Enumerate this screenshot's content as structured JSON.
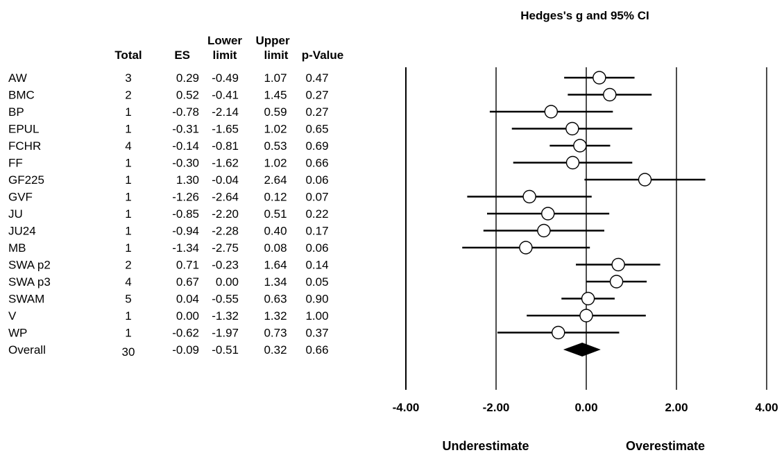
{
  "chart_data": {
    "type": "forest",
    "title": "Hedges's g and 95% CI",
    "columns": {
      "total": "Total",
      "es": "ES",
      "lower_top": "Lower",
      "lower_bottom": "limit",
      "upper_top": "Upper",
      "upper_bottom": "limit",
      "p": "p-Value"
    },
    "rows": [
      {
        "label": "AW",
        "total": "3",
        "es": "0.29",
        "lower": "-0.49",
        "upper": "1.07",
        "p": "0.47"
      },
      {
        "label": "BMC",
        "total": "2",
        "es": "0.52",
        "lower": "-0.41",
        "upper": "1.45",
        "p": "0.27"
      },
      {
        "label": "BP",
        "total": "1",
        "es": "-0.78",
        "lower": "-2.14",
        "upper": "0.59",
        "p": "0.27"
      },
      {
        "label": "EPUL",
        "total": "1",
        "es": "-0.31",
        "lower": "-1.65",
        "upper": "1.02",
        "p": "0.65"
      },
      {
        "label": "FCHR",
        "total": "4",
        "es": "-0.14",
        "lower": "-0.81",
        "upper": "0.53",
        "p": "0.69"
      },
      {
        "label": "FF",
        "total": "1",
        "es": "-0.30",
        "lower": "-1.62",
        "upper": "1.02",
        "p": "0.66"
      },
      {
        "label": "GF225",
        "total": "1",
        "es": "1.30",
        "lower": "-0.04",
        "upper": "2.64",
        "p": "0.06"
      },
      {
        "label": "GVF",
        "total": "1",
        "es": "-1.26",
        "lower": "-2.64",
        "upper": "0.12",
        "p": "0.07"
      },
      {
        "label": "JU",
        "total": "1",
        "es": "-0.85",
        "lower": "-2.20",
        "upper": "0.51",
        "p": "0.22"
      },
      {
        "label": "JU24",
        "total": "1",
        "es": "-0.94",
        "lower": "-2.28",
        "upper": "0.40",
        "p": "0.17"
      },
      {
        "label": "MB",
        "total": "1",
        "es": "-1.34",
        "lower": "-2.75",
        "upper": "0.08",
        "p": "0.06"
      },
      {
        "label": "SWA p2",
        "total": "2",
        "es": "0.71",
        "lower": "-0.23",
        "upper": "1.64",
        "p": "0.14"
      },
      {
        "label": "SWA p3",
        "total": "4",
        "es": "0.67",
        "lower": "0.00",
        "upper": "1.34",
        "p": "0.05"
      },
      {
        "label": "SWAM",
        "total": "5",
        "es": "0.04",
        "lower": "-0.55",
        "upper": "0.63",
        "p": "0.90"
      },
      {
        "label": "V",
        "total": "1",
        "es": "0.00",
        "lower": "-1.32",
        "upper": "1.32",
        "p": "1.00"
      },
      {
        "label": "WP",
        "total": "1",
        "es": "-0.62",
        "lower": "-1.97",
        "upper": "0.73",
        "p": "0.37"
      }
    ],
    "overall": {
      "label": "Overall",
      "total": "30",
      "es": "-0.09",
      "lower": "-0.51",
      "upper": "0.32",
      "p": "0.66"
    },
    "x_ticks": [
      "-4.00",
      "-2.00",
      "0.00",
      "2.00",
      "4.00"
    ],
    "xlim": [
      -4,
      4
    ],
    "vertical_lines_at": [
      -4,
      -2,
      2,
      4
    ],
    "left_direction": "Underestimate",
    "right_direction": "Overestimate",
    "colors": {
      "ink": "#000000",
      "marker_fill": "#ffffff"
    }
  }
}
